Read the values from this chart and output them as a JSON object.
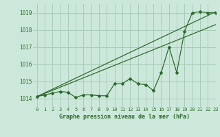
{
  "title": "Graphe pression niveau de la mer (hPa)",
  "bg_color": "#cce8da",
  "grid_color": "#aaccbb",
  "line_color": "#2d6a2d",
  "xlim": [
    -0.5,
    23
  ],
  "ylim": [
    1013.5,
    1019.5
  ],
  "yticks": [
    1014,
    1015,
    1016,
    1017,
    1018,
    1019
  ],
  "xticks": [
    0,
    1,
    2,
    3,
    4,
    5,
    6,
    7,
    8,
    9,
    10,
    11,
    12,
    13,
    14,
    15,
    16,
    17,
    18,
    19,
    20,
    21,
    22,
    23
  ],
  "hours": [
    0,
    1,
    2,
    3,
    4,
    5,
    6,
    7,
    8,
    9,
    10,
    11,
    12,
    13,
    14,
    15,
    16,
    17,
    18,
    19,
    20,
    21,
    22,
    23
  ],
  "pressure_data": [
    1014.1,
    1014.2,
    1014.3,
    1014.4,
    1014.35,
    1014.05,
    1014.2,
    1014.2,
    1014.15,
    1014.15,
    1014.85,
    1014.85,
    1015.15,
    1014.85,
    1014.8,
    1014.45,
    1015.5,
    1017.0,
    1015.5,
    1017.9,
    1019.0,
    1019.05,
    1019.0,
    1019.0
  ],
  "trend1_x": [
    0,
    23
  ],
  "trend1_y": [
    1014.1,
    1019.05
  ],
  "trend2_x": [
    0,
    23
  ],
  "trend2_y": [
    1014.1,
    1018.3
  ]
}
